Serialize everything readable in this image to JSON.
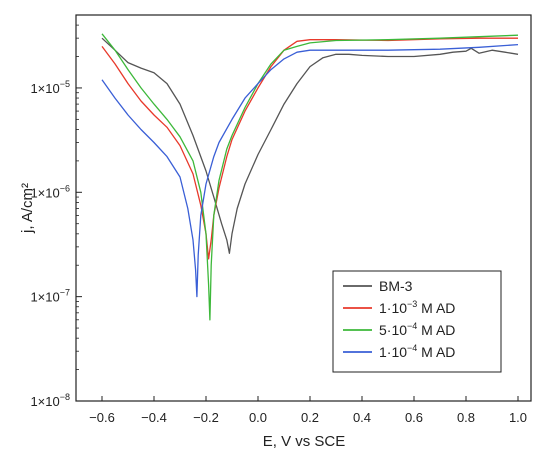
{
  "chart_data": {
    "type": "line",
    "xlabel": "E, V vs SCE",
    "ylabel": "j, A/cm²",
    "xlim": [
      -0.7,
      1.05
    ],
    "ylim": [
      1e-08,
      5e-05
    ],
    "yscale": "log",
    "xticks": [
      -0.6,
      -0.4,
      -0.2,
      0.0,
      0.2,
      0.4,
      0.6,
      0.8,
      1.0
    ],
    "xtick_labels": [
      "−0.6",
      "−0.4",
      "−0.2",
      "0.0",
      "0.2",
      "0.4",
      "0.6",
      "0.8",
      "1.0"
    ],
    "yticks": [
      {
        "value": 1e-08,
        "base": "1×10",
        "exp": "−8"
      },
      {
        "value": 1e-07,
        "base": "1×10",
        "exp": "−7"
      },
      {
        "value": 1e-06,
        "base": "1×10",
        "exp": "−6"
      },
      {
        "value": 1e-05,
        "base": "1×10",
        "exp": "−5"
      }
    ],
    "grid": false,
    "legend_position": "bottom-right",
    "series": [
      {
        "name": "BM-3",
        "label_main": "BM-3",
        "label_exp": "",
        "label_suffix": "",
        "color": "#555555",
        "x": [
          -0.6,
          -0.55,
          -0.5,
          -0.45,
          -0.4,
          -0.35,
          -0.3,
          -0.25,
          -0.2,
          -0.17,
          -0.14,
          -0.12,
          -0.11,
          -0.1,
          -0.08,
          -0.05,
          0.0,
          0.05,
          0.1,
          0.15,
          0.2,
          0.25,
          0.3,
          0.35,
          0.4,
          0.5,
          0.6,
          0.7,
          0.75,
          0.8,
          0.82,
          0.85,
          0.9,
          0.95,
          1.0
        ],
        "y": [
          3e-05,
          2.3e-05,
          1.75e-05,
          1.55e-05,
          1.4e-05,
          1.1e-05,
          7e-06,
          3.5e-06,
          1.6e-06,
          9e-07,
          5e-07,
          3.5e-07,
          2.6e-07,
          4e-07,
          7e-07,
          1.2e-06,
          2.3e-06,
          4e-06,
          7e-06,
          1.1e-05,
          1.6e-05,
          1.95e-05,
          2.1e-05,
          2.1e-05,
          2.05e-05,
          2e-05,
          2e-05,
          2.1e-05,
          2.2e-05,
          2.25e-05,
          2.4e-05,
          2.15e-05,
          2.3e-05,
          2.2e-05,
          2.1e-05
        ]
      },
      {
        "name": "1·10⁻³ M AD",
        "label_main": "1·10",
        "label_exp": "−3",
        "label_suffix": " M AD",
        "color": "#e8392b",
        "x": [
          -0.6,
          -0.55,
          -0.5,
          -0.45,
          -0.4,
          -0.35,
          -0.3,
          -0.25,
          -0.22,
          -0.2,
          -0.19,
          -0.18,
          -0.17,
          -0.15,
          -0.12,
          -0.1,
          -0.05,
          0.0,
          0.05,
          0.1,
          0.15,
          0.2,
          0.3,
          0.5,
          0.7,
          0.85,
          1.0
        ],
        "y": [
          2.5e-05,
          1.7e-05,
          1.1e-05,
          7.5e-06,
          5.5e-06,
          4.2e-06,
          2.8e-06,
          1.5e-06,
          7.5e-07,
          4e-07,
          2.3e-07,
          3.5e-07,
          6e-07,
          1.1e-06,
          2.2e-06,
          3.2e-06,
          6e-06,
          1e-05,
          1.6e-05,
          2.3e-05,
          2.8e-05,
          2.9e-05,
          2.9e-05,
          2.85e-05,
          2.95e-05,
          3e-05,
          3e-05
        ]
      },
      {
        "name": "5·10⁻⁴ M AD",
        "label_main": "5·10",
        "label_exp": "−4",
        "label_suffix": " M AD",
        "color": "#3db83a",
        "x": [
          -0.6,
          -0.55,
          -0.5,
          -0.45,
          -0.4,
          -0.35,
          -0.3,
          -0.25,
          -0.22,
          -0.2,
          -0.19,
          -0.185,
          -0.18,
          -0.17,
          -0.15,
          -0.12,
          -0.1,
          -0.05,
          0.0,
          0.05,
          0.1,
          0.15,
          0.2,
          0.3,
          0.5,
          0.7,
          0.85,
          1.0
        ],
        "y": [
          3.3e-05,
          2.3e-05,
          1.5e-05,
          1e-05,
          7e-06,
          5e-06,
          3.4e-06,
          2e-06,
          1e-06,
          4e-07,
          1.3e-07,
          6e-08,
          2e-07,
          6e-07,
          1.3e-06,
          2.6e-06,
          3.5e-06,
          6.5e-06,
          1.1e-05,
          1.7e-05,
          2.3e-05,
          2.5e-05,
          2.7e-05,
          2.85e-05,
          2.9e-05,
          3e-05,
          3.1e-05,
          3.2e-05
        ]
      },
      {
        "name": "1·10⁻⁴ M AD",
        "label_main": "1·10",
        "label_exp": "−4",
        "label_suffix": " M AD",
        "color": "#3a5fd6",
        "x": [
          -0.6,
          -0.55,
          -0.5,
          -0.45,
          -0.4,
          -0.35,
          -0.3,
          -0.27,
          -0.25,
          -0.24,
          -0.235,
          -0.23,
          -0.22,
          -0.2,
          -0.17,
          -0.15,
          -0.1,
          -0.05,
          0.0,
          0.05,
          0.1,
          0.15,
          0.2,
          0.3,
          0.5,
          0.7,
          0.85,
          1.0
        ],
        "y": [
          1.2e-05,
          8e-06,
          5.5e-06,
          4e-06,
          3e-06,
          2.2e-06,
          1.4e-06,
          7e-07,
          3.5e-07,
          1.8e-07,
          1e-07,
          2.5e-07,
          6e-07,
          1.2e-06,
          2.2e-06,
          3e-06,
          5e-06,
          8e-06,
          1.1e-05,
          1.5e-05,
          1.9e-05,
          2.2e-05,
          2.3e-05,
          2.3e-05,
          2.3e-05,
          2.35e-05,
          2.45e-05,
          2.6e-05
        ]
      }
    ]
  }
}
